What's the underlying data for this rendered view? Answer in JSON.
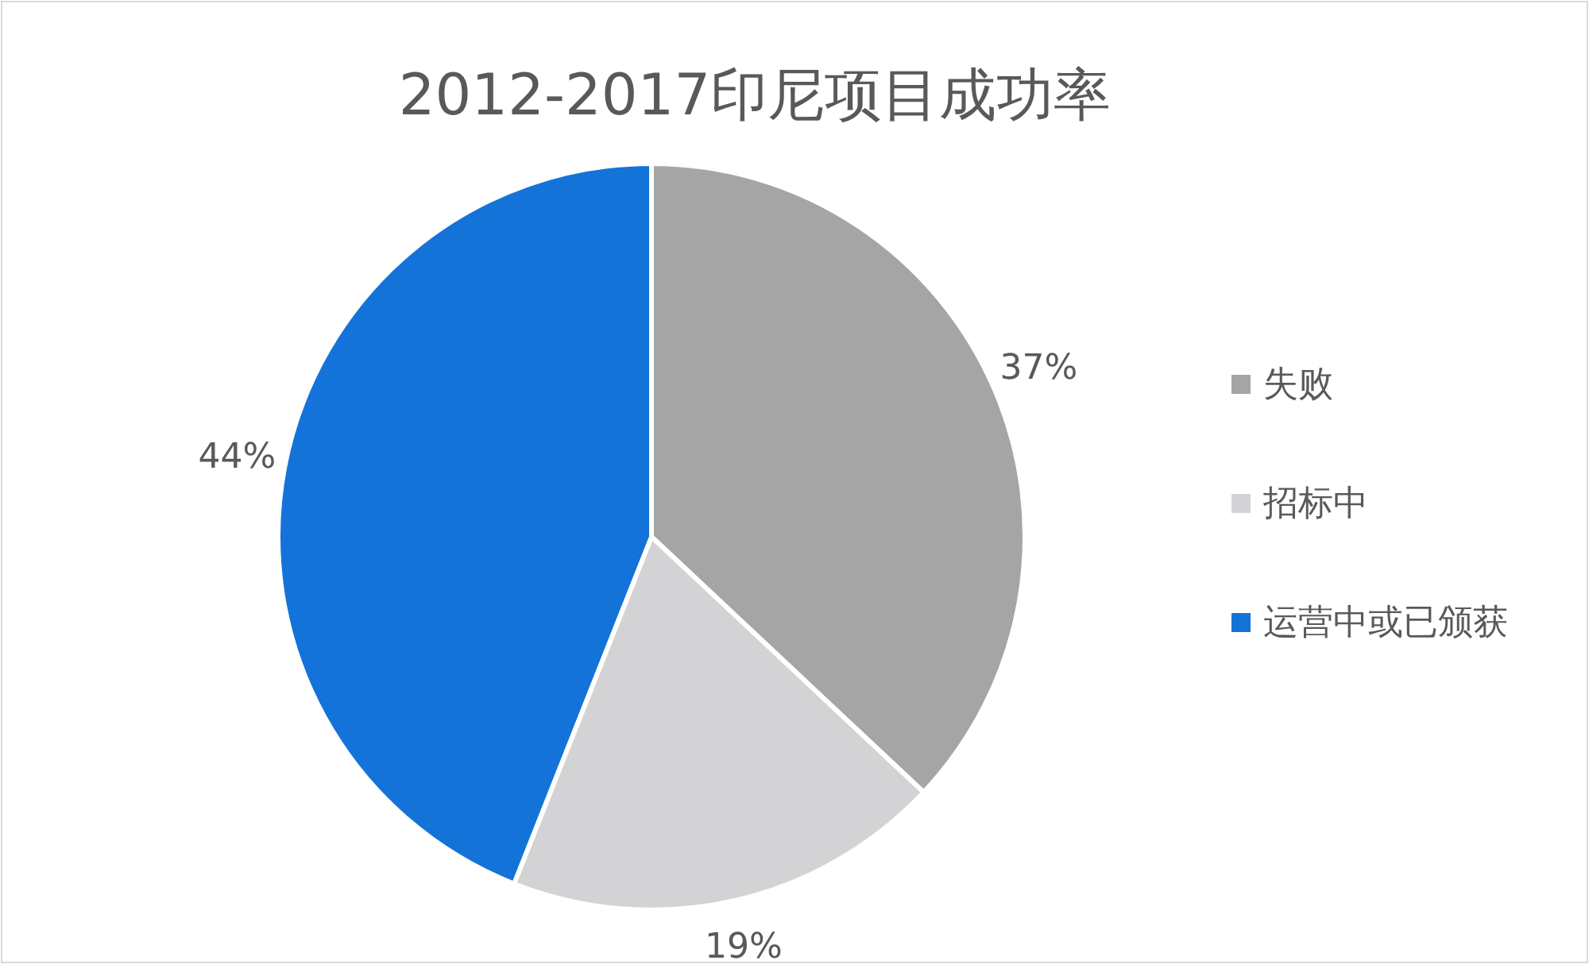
{
  "chart_data": {
    "type": "pie",
    "title": "2012-2017印尼项目成功率",
    "categories": [
      "失败",
      "招标中",
      "运营中或已颁获"
    ],
    "values": [
      37,
      19,
      44
    ],
    "colors": [
      "#a5a5a5",
      "#d3d3d5",
      "#1473d8"
    ],
    "value_labels": [
      "37%",
      "19%",
      "44%"
    ],
    "legend": "right"
  }
}
